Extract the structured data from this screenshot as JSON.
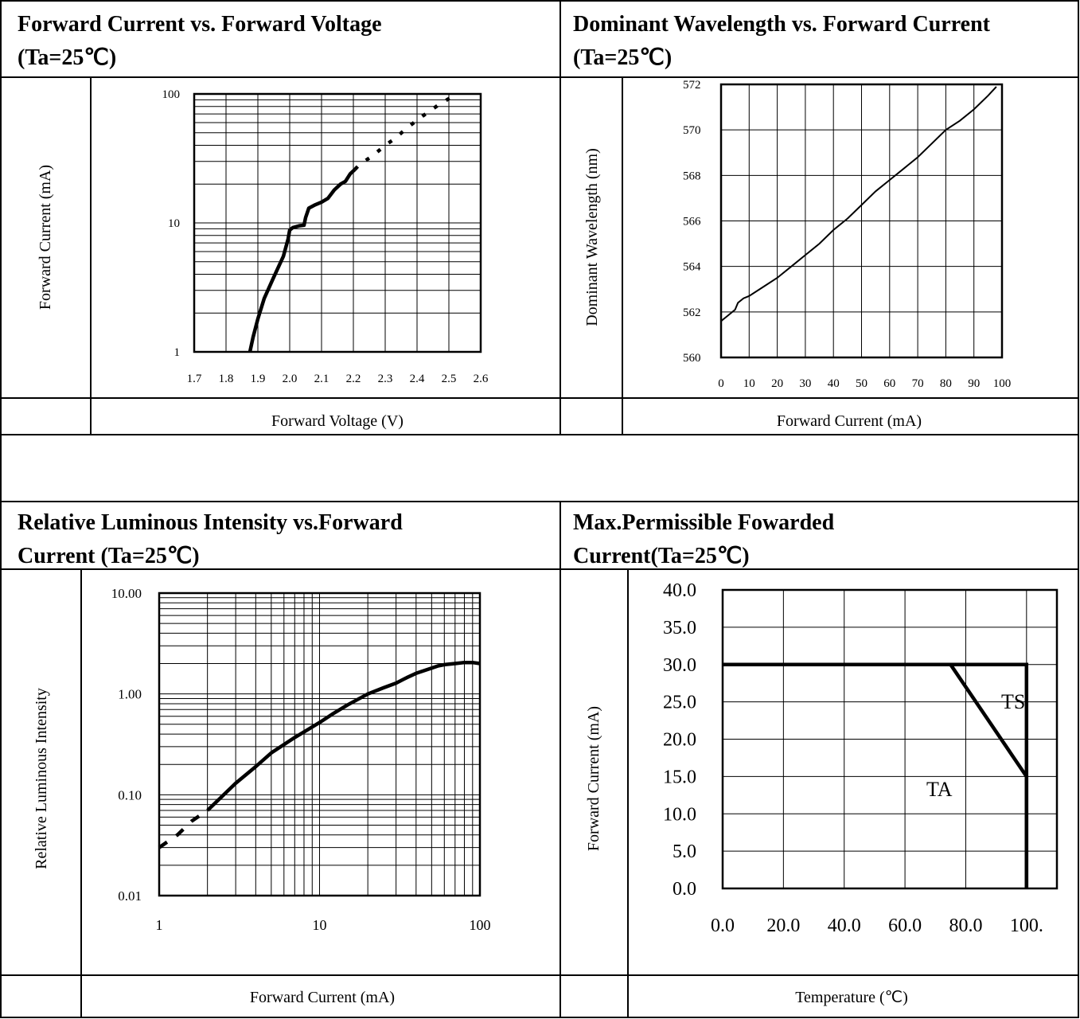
{
  "chart_data": [
    {
      "type": "line",
      "title": "Forward Current vs. Forward Voltage",
      "title_line2": "(Ta=25℃)",
      "xlabel": "Forward Voltage (V)",
      "ylabel": "Forward Current (mA)",
      "xlim": [
        1.7,
        2.6
      ],
      "ylim": [
        1,
        100
      ],
      "yscale": "log",
      "grid": true,
      "x_ticks": [
        "1.7",
        "1.8",
        "1.9",
        "2.0",
        "2.1",
        "2.2",
        "2.3",
        "2.4",
        "2.5",
        "2.6"
      ],
      "y_ticks": [
        "1",
        "10",
        "100"
      ],
      "series": [
        {
          "x": [
            1.875,
            1.885,
            1.9,
            1.92,
            1.95,
            1.98,
            1.995,
            2.0,
            2.01,
            2.03,
            2.045,
            2.05,
            2.06,
            2.08,
            2.1,
            2.12,
            2.14,
            2.16,
            2.175,
            2.19,
            2.205,
            2.22,
            2.26,
            2.3,
            2.33,
            2.37,
            2.42,
            2.47,
            2.5,
            2.52
          ],
          "y": [
            1.0,
            1.3,
            1.8,
            2.6,
            3.8,
            5.5,
            7.5,
            8.8,
            9.2,
            9.5,
            9.6,
            11.0,
            13.0,
            13.8,
            14.5,
            15.5,
            18.0,
            20.0,
            21.0,
            24.0,
            26.0,
            28.5,
            33.0,
            40.0,
            45.0,
            55.0,
            68.0,
            83.0,
            92.0,
            98.0
          ]
        }
      ]
    },
    {
      "type": "line",
      "title": "Dominant Wavelength vs. Forward Current",
      "title_line2": "(Ta=25℃)",
      "xlabel": "Forward Current (mA)",
      "ylabel": "Dominant Wavelength (nm)",
      "xlim": [
        0,
        100
      ],
      "ylim": [
        560,
        572
      ],
      "grid": true,
      "x_ticks": [
        "0",
        "10",
        "20",
        "30",
        "40",
        "50",
        "60",
        "70",
        "80",
        "90",
        "100"
      ],
      "y_ticks": [
        "560",
        "562",
        "564",
        "566",
        "568",
        "570",
        "572"
      ],
      "series": [
        {
          "x": [
            0,
            2,
            5,
            6,
            8,
            10,
            15,
            20,
            25,
            30,
            35,
            40,
            45,
            50,
            55,
            60,
            65,
            70,
            75,
            80,
            85,
            90,
            95,
            98
          ],
          "y": [
            561.6,
            561.8,
            562.1,
            562.4,
            562.6,
            562.7,
            563.1,
            563.5,
            564.0,
            564.5,
            565.0,
            565.6,
            566.1,
            566.7,
            567.3,
            567.8,
            568.3,
            568.8,
            569.4,
            570.0,
            570.4,
            570.9,
            571.5,
            571.9
          ]
        }
      ]
    },
    {
      "type": "line",
      "title": "Relative Luminous Intensity vs.Forward",
      "title_line2": "Current (Ta=25℃)",
      "xlabel": "Forward Current (mA)",
      "ylabel": "Relative Luminous Intensity",
      "xlim": [
        1,
        100
      ],
      "ylim": [
        0.01,
        10
      ],
      "xscale": "log",
      "yscale": "log",
      "grid": true,
      "x_ticks": [
        "1",
        "10",
        "100"
      ],
      "y_ticks": [
        "0.01",
        "0.10",
        "1.00",
        "10.00"
      ],
      "series": [
        {
          "x": [
            1,
            1.3,
            1.6,
            2,
            3,
            4,
            5,
            7,
            10,
            12,
            15,
            20,
            25,
            30,
            35,
            40,
            50,
            55,
            60,
            70,
            80,
            90,
            100
          ],
          "y": [
            0.03,
            0.04,
            0.055,
            0.07,
            0.13,
            0.19,
            0.26,
            0.37,
            0.52,
            0.63,
            0.78,
            1.0,
            1.15,
            1.28,
            1.45,
            1.6,
            1.8,
            1.9,
            1.95,
            2.0,
            2.05,
            2.05,
            2.0
          ]
        }
      ]
    },
    {
      "type": "line",
      "title": "Max.Permissible Fowarded",
      "title_line2": "Current(Ta=25℃)",
      "xlabel": "Temperature (℃)",
      "ylabel": "Forward Current (mA)",
      "xlim": [
        0,
        110
      ],
      "ylim": [
        0,
        40
      ],
      "grid": true,
      "x_ticks": [
        "0.0",
        "20.0",
        "40.0",
        "60.0",
        "80.0",
        "100."
      ],
      "y_ticks": [
        "0.0",
        "5.0",
        "10.0",
        "15.0",
        "20.0",
        "25.0",
        "30.0",
        "35.0",
        "40.0"
      ],
      "annotations": [
        "TS",
        "TA"
      ],
      "series": [
        {
          "name": "TA",
          "x": [
            0,
            75,
            100,
            100
          ],
          "y": [
            30,
            30,
            15,
            0
          ]
        },
        {
          "name": "TS",
          "x": [
            0,
            100,
            100
          ],
          "y": [
            30,
            30,
            0
          ]
        }
      ]
    }
  ]
}
